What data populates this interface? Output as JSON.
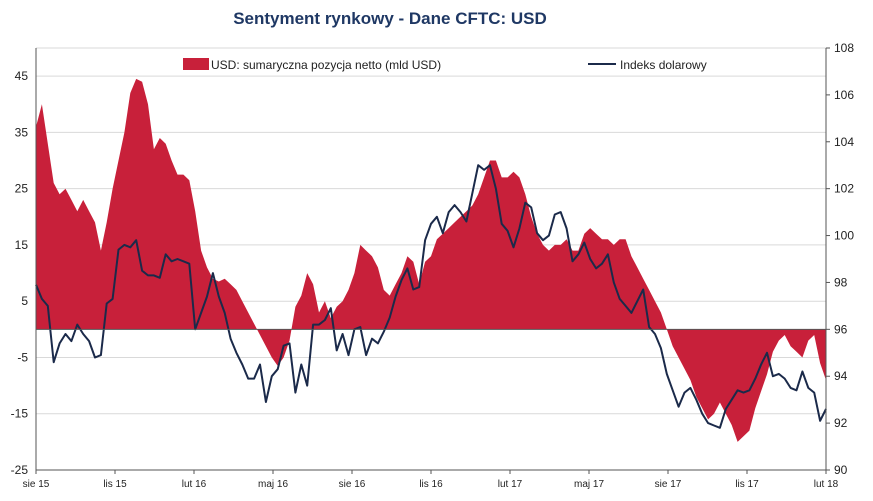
{
  "chart_data": {
    "type": "area",
    "title": "Sentyment rynkowy - Dane CFTC:  USD",
    "x_tick_labels": [
      "sie 15",
      "lis 15",
      "lut 16",
      "maj 16",
      "sie 16",
      "lis 16",
      "lut 17",
      "maj 17",
      "sie 17",
      "lis 17",
      "lut 18"
    ],
    "y_left": {
      "ticks": [
        45,
        35,
        25,
        15,
        5,
        -5,
        -15,
        -25
      ],
      "ylim": [
        -25,
        50
      ]
    },
    "y_right": {
      "ticks": [
        108,
        106,
        104,
        102,
        100,
        98,
        96,
        94,
        92,
        90
      ],
      "ylim": [
        90,
        108
      ]
    },
    "legend": {
      "position": "top",
      "entries": [
        "USD: sumaryczna pozycja netto (mld USD)",
        "Indeks dolarowy"
      ]
    },
    "colors": {
      "area": "#c8203a",
      "line": "#1b2a4a",
      "title": "#1f3864"
    },
    "grid": true,
    "series": [
      {
        "name": "USD: sumaryczna pozycja netto (mld USD)",
        "axis": "left",
        "type": "area",
        "values": [
          36,
          40,
          33,
          26,
          24,
          25,
          23,
          21,
          23,
          21,
          19,
          14,
          19,
          25,
          30,
          35,
          42,
          44.5,
          44,
          40,
          32,
          34,
          33,
          30,
          27.5,
          27.5,
          26.5,
          21,
          14,
          11,
          9,
          8.5,
          9,
          8,
          7,
          5,
          3,
          1,
          -1,
          -3,
          -5,
          -6.5,
          -5,
          -2,
          4,
          6,
          10,
          8,
          3,
          5,
          2,
          4,
          5,
          7,
          10,
          15,
          14,
          13,
          11,
          7,
          6,
          8,
          10,
          13,
          12,
          8,
          12,
          13,
          16,
          17,
          18,
          19,
          20,
          21,
          22,
          24,
          27,
          30,
          30,
          27,
          27,
          28,
          27,
          24,
          20,
          17,
          15,
          14,
          15,
          15,
          16,
          14,
          14,
          17,
          18,
          17,
          16,
          16,
          15,
          16,
          16,
          13,
          11,
          9,
          7,
          5,
          3,
          0,
          -3,
          -5,
          -7,
          -9,
          -12,
          -14,
          -16,
          -15,
          -13,
          -15,
          -17,
          -20,
          -19,
          -18,
          -14,
          -11,
          -8,
          -4,
          -2,
          -1,
          -3,
          -4,
          -5,
          -2,
          -1,
          -6,
          -9
        ]
      },
      {
        "name": "Indeks dolarowy",
        "axis": "right",
        "type": "line",
        "values": [
          97.9,
          97.3,
          97.0,
          94.6,
          95.4,
          95.8,
          95.5,
          96.2,
          95.8,
          95.5,
          94.8,
          94.9,
          97.1,
          97.3,
          99.4,
          99.6,
          99.5,
          99.8,
          98.5,
          98.3,
          98.3,
          98.2,
          99.2,
          98.9,
          99.0,
          98.9,
          98.8,
          96.0,
          96.7,
          97.4,
          98.4,
          97.4,
          96.7,
          95.6,
          95.0,
          94.5,
          93.9,
          93.9,
          94.5,
          92.9,
          94.0,
          94.3,
          95.3,
          95.4,
          93.3,
          94.5,
          93.6,
          96.2,
          96.2,
          96.4,
          96.9,
          95.1,
          95.8,
          94.9,
          96.0,
          96.1,
          94.9,
          95.6,
          95.4,
          95.9,
          96.5,
          97.4,
          98.1,
          98.6,
          97.7,
          97.8,
          99.8,
          100.5,
          100.8,
          100.1,
          101.0,
          101.3,
          101.0,
          100.6,
          101.8,
          103.0,
          102.8,
          103.0,
          102.0,
          100.5,
          100.2,
          99.5,
          100.3,
          101.4,
          101.2,
          100.1,
          99.8,
          100.0,
          100.9,
          101.0,
          100.3,
          98.9,
          99.2,
          99.7,
          99.0,
          98.6,
          98.8,
          99.2,
          98.0,
          97.3,
          97.0,
          96.7,
          97.2,
          97.7,
          96.1,
          95.8,
          95.2,
          94.1,
          93.4,
          92.7,
          93.3,
          93.5,
          93.0,
          92.4,
          92.0,
          91.9,
          91.8,
          92.6,
          93.0,
          93.4,
          93.3,
          93.4,
          93.9,
          94.5,
          95.0,
          94.0,
          94.1,
          93.9,
          93.5,
          93.4,
          94.2,
          93.5,
          93.3,
          92.1,
          92.6
        ]
      }
    ]
  }
}
